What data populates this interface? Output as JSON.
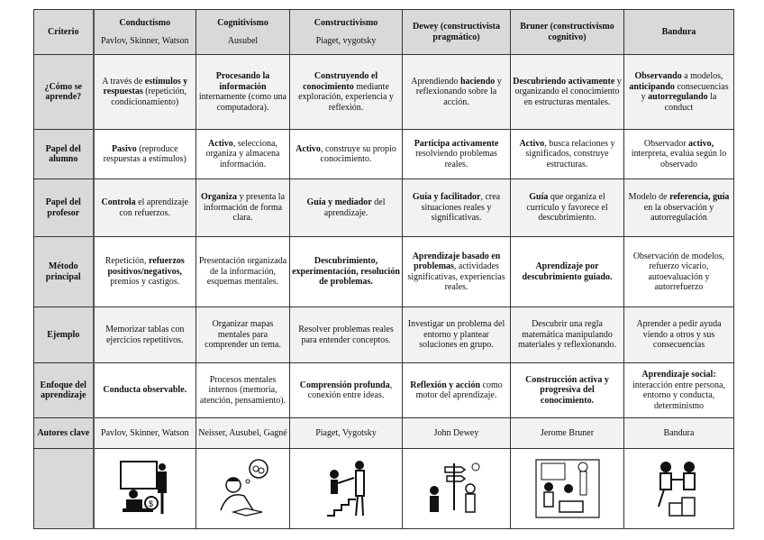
{
  "header": {
    "criterio": "Criterio",
    "columns": [
      {
        "name": "Conductismo",
        "sub": "Pavlov, Skinner, Watson"
      },
      {
        "name": "Cognitivismo",
        "sub": "Ausubel"
      },
      {
        "name": "Constructivismo",
        "sub": "Piaget, vygotsky"
      },
      {
        "name": "Dewey (constructivista pragmático)",
        "sub": ""
      },
      {
        "name": "Bruner (constructivismo cognitivo)",
        "sub": ""
      },
      {
        "name": "Bandura",
        "sub": ""
      }
    ]
  },
  "rows": [
    {
      "label": "¿Cómo se aprende?",
      "cells": [
        [
          {
            "t": "A través de "
          },
          {
            "t": "estímulos y respuestas",
            "b": true
          },
          {
            "t": " (repetición, condicionamiento)"
          }
        ],
        [
          {
            "t": "Procesando la información",
            "b": true
          },
          {
            "t": " internamente (como una computadora)."
          }
        ],
        [
          {
            "t": "Construyendo el conocimiento",
            "b": true
          },
          {
            "t": " mediante exploración, experiencia y reflexión."
          }
        ],
        [
          {
            "t": "Aprendiendo "
          },
          {
            "t": "haciendo",
            "b": true
          },
          {
            "t": " y reflexionando sobre la acción."
          }
        ],
        [
          {
            "t": "Descubriendo activamente",
            "b": true
          },
          {
            "t": " y organizando el conocimiento en estructuras mentales."
          }
        ],
        [
          {
            "t": "Observando",
            "b": true
          },
          {
            "t": " a modelos, "
          },
          {
            "t": "anticipando",
            "b": true
          },
          {
            "t": " consecuencias y "
          },
          {
            "t": "autorregulando",
            "b": true
          },
          {
            "t": " la conduct"
          }
        ]
      ]
    },
    {
      "label": "Papel del alumno",
      "cells": [
        [
          {
            "t": "Pasivo",
            "b": true
          },
          {
            "t": " (reproduce respuestas a estímulos)"
          }
        ],
        [
          {
            "t": "Activo",
            "b": true
          },
          {
            "t": ", selecciona, organiza y almacena información."
          }
        ],
        [
          {
            "t": "Activo",
            "b": true
          },
          {
            "t": ", construye su propio conocimiento."
          }
        ],
        [
          {
            "t": "Participa activamente",
            "b": true
          },
          {
            "t": " resolviendo problemas reales."
          }
        ],
        [
          {
            "t": "Activo",
            "b": true
          },
          {
            "t": ", busca relaciones y significados, construye estructuras."
          }
        ],
        [
          {
            "t": "Observador "
          },
          {
            "t": "activo,",
            "b": true
          },
          {
            "t": " interpreta, evalúa según lo observado"
          }
        ]
      ]
    },
    {
      "label": "Papel del profesor",
      "cells": [
        [
          {
            "t": "Controla",
            "b": true
          },
          {
            "t": " el aprendizaje con refuerzos."
          }
        ],
        [
          {
            "t": "Organiza",
            "b": true
          },
          {
            "t": " y presenta la información de forma clara."
          }
        ],
        [
          {
            "t": "Guía y mediador",
            "b": true
          },
          {
            "t": " del aprendizaje."
          }
        ],
        [
          {
            "t": "Guía y facilitador",
            "b": true
          },
          {
            "t": ", crea situaciones reales y significativas."
          }
        ],
        [
          {
            "t": "Guía",
            "b": true
          },
          {
            "t": " que organiza el currículo y favorece el descubrimiento."
          }
        ],
        [
          {
            "t": "Modelo de "
          },
          {
            "t": "referencia, guía",
            "b": true
          },
          {
            "t": " en la observación y autorregulación"
          }
        ]
      ]
    },
    {
      "label": "Método principal",
      "cells": [
        [
          {
            "t": "Repetición, "
          },
          {
            "t": "refuerzos positivos/negativos,",
            "b": true
          },
          {
            "t": " premios y castigos."
          }
        ],
        [
          {
            "t": "Presentación organizada de la información, esquemas mentales."
          }
        ],
        [
          {
            "t": "Descubrimiento, experimentación, resolución de problemas.",
            "b": true
          }
        ],
        [
          {
            "t": "Aprendizaje basado en problemas",
            "b": true
          },
          {
            "t": ", actividades significativas, experiencias reales."
          }
        ],
        [
          {
            "t": "Aprendizaje por descubrimiento guiado.",
            "b": true
          }
        ],
        [
          {
            "t": "Observación de modelos, refuerzo vicario, autoevaluación y autorrefuerzo"
          }
        ]
      ]
    },
    {
      "label": "Ejemplo",
      "cells": [
        [
          {
            "t": "Memorizar tablas con ejercicios repetitivos."
          }
        ],
        [
          {
            "t": "Organizar mapas mentales para comprender un tema."
          }
        ],
        [
          {
            "t": "Resolver problemas reales para entender conceptos."
          }
        ],
        [
          {
            "t": "Investigar un problema del entorno y plantear soluciones en grupo."
          }
        ],
        [
          {
            "t": "Descubrir una regla matemática manipulando materiales y reflexionando."
          }
        ],
        [
          {
            "t": "Aprender a pedir ayuda viendo a otros y sus consecuencias"
          }
        ]
      ]
    },
    {
      "label": "Enfoque del aprendizaje",
      "cells": [
        [
          {
            "t": "Conducta observable.",
            "b": true
          }
        ],
        [
          {
            "t": "Procesos mentales internos (memoria, atención, pensamiento)."
          }
        ],
        [
          {
            "t": "Comprensión profunda",
            "b": true
          },
          {
            "t": ", conexión entre ideas."
          }
        ],
        [
          {
            "t": "Reflexión y acción",
            "b": true
          },
          {
            "t": " como motor del aprendizaje."
          }
        ],
        [
          {
            "t": "Construcción activa y progresiva del conocimiento.",
            "b": true
          }
        ],
        [
          {
            "t": "Aprendizaje social:",
            "b": true
          },
          {
            "t": " interacción entre persona, entorno y conducta, determinismo"
          }
        ]
      ]
    },
    {
      "label": "Autores clave",
      "cells": [
        [
          {
            "t": "Pavlov, Skinner, Watson"
          }
        ],
        [
          {
            "t": "Neisser, Ausubel, Gagné"
          }
        ],
        [
          {
            "t": "Piaget, Vygotsky"
          }
        ],
        [
          {
            "t": "John Dewey"
          }
        ],
        [
          {
            "t": "Jerome Bruner"
          }
        ],
        [
          {
            "t": "Bandura"
          }
        ]
      ]
    }
  ],
  "illustrations": [
    "teacher-reward-illustration",
    "student-thinking-illustration",
    "guided-staircase-illustration",
    "signpost-inquiry-illustration",
    "children-discovery-illustration",
    "children-helping-illustration"
  ]
}
